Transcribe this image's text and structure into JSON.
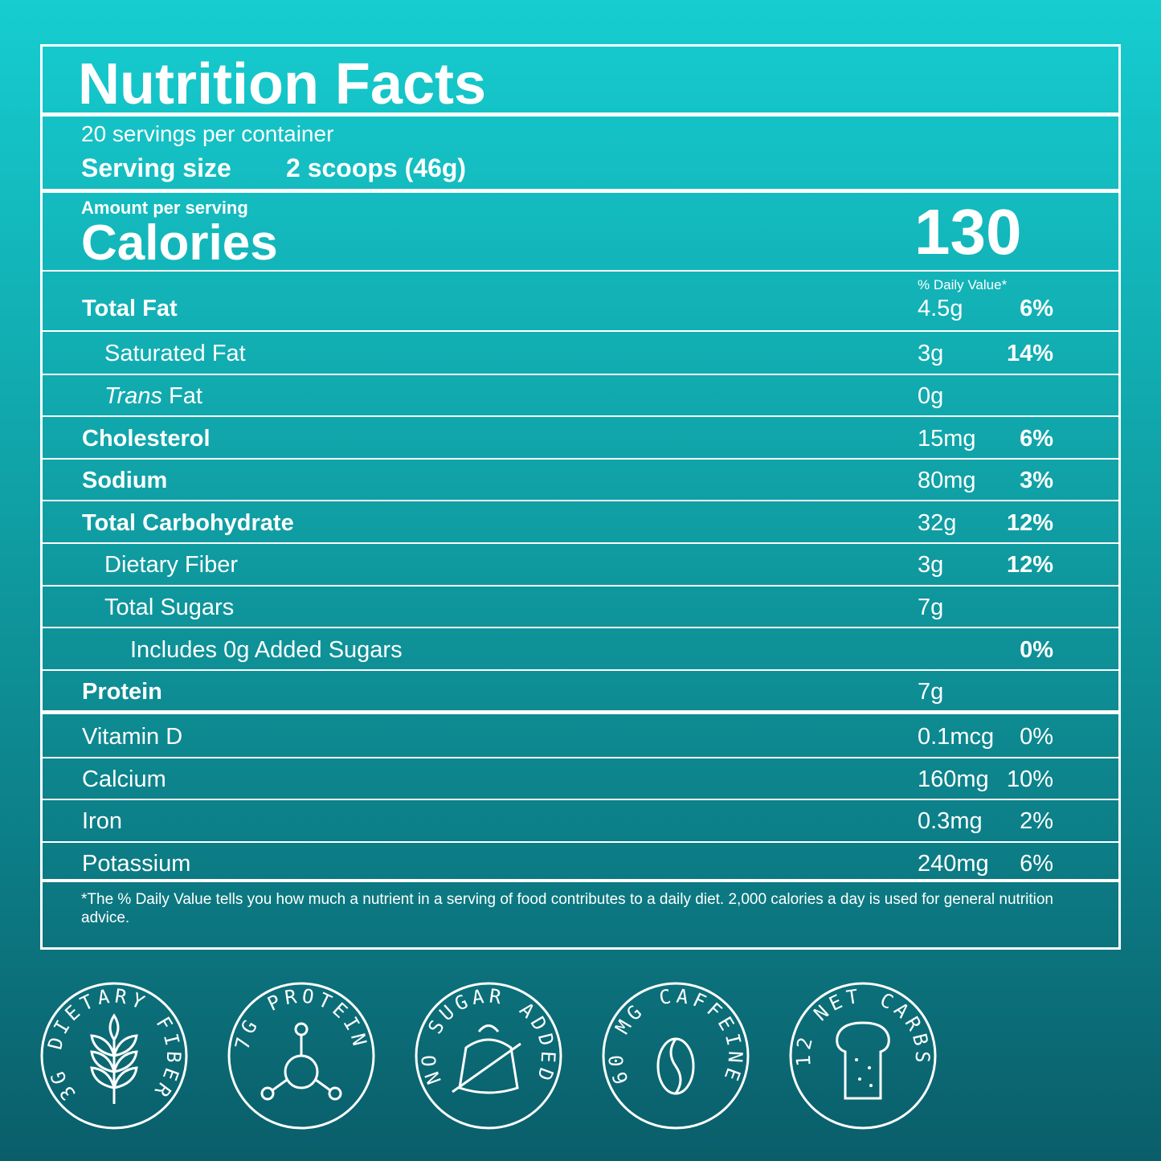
{
  "header": {
    "title": "Nutrition Facts"
  },
  "servings": {
    "per_container": "20 servings per container",
    "size_label": "Serving size",
    "size_value": "2 scoops (46g)"
  },
  "calories": {
    "amount_label": "Amount per serving",
    "label": "Calories",
    "value": "130"
  },
  "daily_value_header": "% Daily Value*",
  "nutrients": [
    {
      "name": "Total Fat",
      "amount": "4.5g",
      "dv": "6%"
    },
    {
      "name": "Saturated Fat",
      "amount": "3g",
      "dv": "14%"
    },
    {
      "name_prefix": "Trans",
      "name": " Fat",
      "amount": "0g"
    },
    {
      "name": "Cholesterol",
      "amount": "15mg",
      "dv": "6%"
    },
    {
      "name": "Sodium",
      "amount": "80mg",
      "dv": "3%"
    },
    {
      "name": "Total Carbohydrate",
      "amount": "32g",
      "dv": "12%"
    },
    {
      "name": "Dietary Fiber",
      "amount": "3g",
      "dv": "12%"
    },
    {
      "name": "Total Sugars",
      "amount": "7g"
    },
    {
      "name": "Includes 0g Added Sugars",
      "dv": "0%"
    },
    {
      "name": "Protein",
      "amount": "7g"
    }
  ],
  "vitamins": [
    {
      "name": "Vitamin D",
      "amount": "0.1mcg",
      "dv": "0%"
    },
    {
      "name": "Calcium",
      "amount": "160mg",
      "dv": "10%"
    },
    {
      "name": "Iron",
      "amount": "0.3mg",
      "dv": "2%"
    },
    {
      "name": "Potassium",
      "amount": "240mg",
      "dv": "6%"
    }
  ],
  "footnote": "*The % Daily Value tells you how much a nutrient in a serving of food contributes to a daily diet. 2,000 calories a day is used for general nutrition advice.",
  "badges": [
    "3G DIETARY FIBER",
    "7G PROTEIN",
    "NO SUGAR ADDED",
    "60 MG CAFFEINE",
    "12 NET CARBS"
  ]
}
